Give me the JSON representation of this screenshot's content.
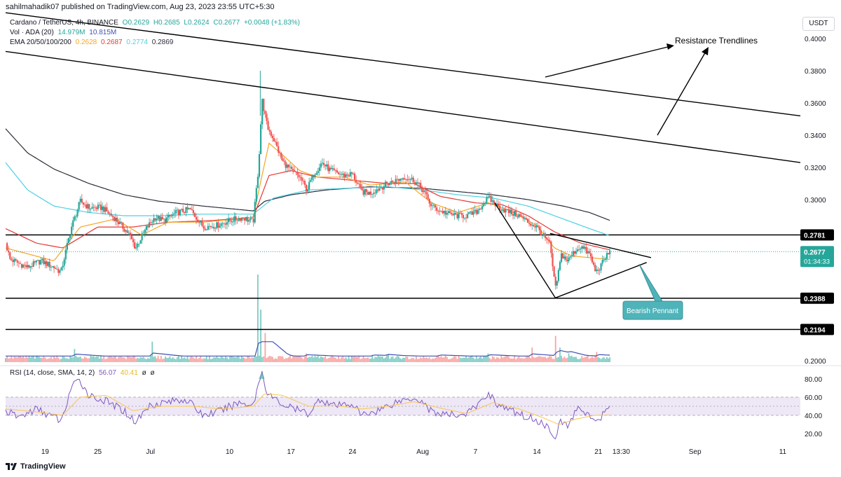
{
  "publisher_line": "sahilmahadik07 published on TradingView.com, Aug 23, 2023 23:55 UTC+5:30",
  "legend": {
    "symbol": "Cardano / TetherUS, 4h, BINANCE",
    "ohlc": {
      "o": "O0.2629",
      "h": "H0.2685",
      "l": "L0.2624",
      "c": "C0.2677",
      "chg": "+0.0048 (+1.83%)"
    },
    "volume": {
      "label": "Vol · ADA (20)",
      "v1": "14.979M",
      "v2": "10.815M"
    },
    "ema": {
      "label": "EMA 20/50/100/200",
      "v20": "0.2628",
      "v50": "0.2687",
      "v100": "0.2774",
      "v200": "0.2869"
    },
    "rsi": {
      "label": "RSI (14, close, SMA, 14, 2)",
      "v1": "56.07",
      "v2": "40.41",
      "v3": "ø",
      "v4": "ø"
    }
  },
  "currency": "USDT",
  "footer_brand": "TradingView",
  "colors": {
    "up": "#26a69a",
    "down": "#ef5350",
    "ema20": "#f5a623",
    "ema50": "#e53935",
    "ema100": "#4dd0e1",
    "ema200": "#2a2e39",
    "volume_ma": "#3f51b5",
    "rsi": "#7e57c2",
    "rsi_ma": "#f9c74f",
    "rsi_band": "#ede7f6",
    "price_badge": "#26a69a"
  },
  "chart_data": {
    "type": "candlestick",
    "symbol": "Cardano / TetherUS",
    "interval": "4h",
    "exchange": "BINANCE",
    "price_axis": {
      "min": 0.195,
      "max": 0.405,
      "ticks": [
        "0.4000",
        "0.3800",
        "0.3600",
        "0.3400",
        "0.3200",
        "0.3000",
        "0.2800",
        "0.2600",
        "0.2400",
        "0.2200",
        "0.2000"
      ]
    },
    "time_axis": {
      "ticks": [
        {
          "label": "19",
          "day": 19
        },
        {
          "label": "25",
          "day": 25
        },
        {
          "label": "Jul",
          "day": 31
        },
        {
          "label": "10",
          "day": 40
        },
        {
          "label": "17",
          "day": 47
        },
        {
          "label": "24",
          "day": 54
        },
        {
          "label": "Aug",
          "day": 62
        },
        {
          "label": "7",
          "day": 68
        },
        {
          "label": "14",
          "day": 75
        },
        {
          "label": "21",
          "day": 82
        },
        {
          "label": "13:30",
          "day": 84.6
        },
        {
          "label": "Sep",
          "day": 93
        },
        {
          "label": "11",
          "day": 103
        }
      ]
    },
    "price_keypoints": [
      [
        14.5,
        0.273
      ],
      [
        15,
        0.263
      ],
      [
        17,
        0.258
      ],
      [
        18.5,
        0.262
      ],
      [
        20,
        0.258
      ],
      [
        20.8,
        0.255
      ],
      [
        22,
        0.283
      ],
      [
        23,
        0.299
      ],
      [
        24,
        0.295
      ],
      [
        25.5,
        0.295
      ],
      [
        27,
        0.288
      ],
      [
        28.5,
        0.279
      ],
      [
        29.3,
        0.27
      ],
      [
        30.5,
        0.282
      ],
      [
        31.5,
        0.289
      ],
      [
        32.5,
        0.287
      ],
      [
        34,
        0.292
      ],
      [
        35.5,
        0.294
      ],
      [
        37,
        0.283
      ],
      [
        38.5,
        0.284
      ],
      [
        40,
        0.287
      ],
      [
        41.5,
        0.289
      ],
      [
        42.7,
        0.286
      ],
      [
        43.3,
        0.32
      ],
      [
        43.7,
        0.362
      ],
      [
        44.3,
        0.345
      ],
      [
        45,
        0.338
      ],
      [
        46,
        0.324
      ],
      [
        47,
        0.318
      ],
      [
        48,
        0.314
      ],
      [
        48.8,
        0.306
      ],
      [
        49.5,
        0.315
      ],
      [
        50.5,
        0.323
      ],
      [
        51.5,
        0.318
      ],
      [
        53,
        0.315
      ],
      [
        54,
        0.316
      ],
      [
        55,
        0.305
      ],
      [
        56,
        0.304
      ],
      [
        57,
        0.307
      ],
      [
        58,
        0.31
      ],
      [
        59,
        0.312
      ],
      [
        60,
        0.314
      ],
      [
        61,
        0.312
      ],
      [
        62,
        0.306
      ],
      [
        63,
        0.296
      ],
      [
        64,
        0.293
      ],
      [
        65,
        0.291
      ],
      [
        66,
        0.29
      ],
      [
        67,
        0.29
      ],
      [
        68,
        0.292
      ],
      [
        69.5,
        0.301
      ],
      [
        70.5,
        0.296
      ],
      [
        71.5,
        0.293
      ],
      [
        73,
        0.29
      ],
      [
        74,
        0.286
      ],
      [
        75,
        0.283
      ],
      [
        75.8,
        0.277
      ],
      [
        76.5,
        0.272
      ],
      [
        77.1,
        0.244
      ],
      [
        77.8,
        0.266
      ],
      [
        78.5,
        0.262
      ],
      [
        79.3,
        0.268
      ],
      [
        80,
        0.271
      ],
      [
        81,
        0.266
      ],
      [
        81.7,
        0.255
      ],
      [
        82.3,
        0.259
      ],
      [
        83,
        0.266
      ],
      [
        83.4,
        0.2677
      ]
    ],
    "ema_keypoints": {
      "ema20": [
        [
          14.5,
          0.27
        ],
        [
          20,
          0.262
        ],
        [
          23,
          0.283
        ],
        [
          27,
          0.288
        ],
        [
          30,
          0.278
        ],
        [
          33,
          0.286
        ],
        [
          37,
          0.286
        ],
        [
          42.7,
          0.289
        ],
        [
          43.5,
          0.31
        ],
        [
          44.5,
          0.335
        ],
        [
          46,
          0.328
        ],
        [
          48,
          0.318
        ],
        [
          50,
          0.314
        ],
        [
          53,
          0.314
        ],
        [
          56,
          0.309
        ],
        [
          60,
          0.311
        ],
        [
          63,
          0.298
        ],
        [
          66,
          0.292
        ],
        [
          69.5,
          0.298
        ],
        [
          72,
          0.293
        ],
        [
          75,
          0.284
        ],
        [
          77,
          0.27
        ],
        [
          79,
          0.265
        ],
        [
          81,
          0.264
        ],
        [
          83.4,
          0.2628
        ]
      ],
      "ema50": [
        [
          14.5,
          0.282
        ],
        [
          18,
          0.273
        ],
        [
          21,
          0.27
        ],
        [
          25,
          0.283
        ],
        [
          29,
          0.283
        ],
        [
          33,
          0.286
        ],
        [
          38,
          0.287
        ],
        [
          42.7,
          0.289
        ],
        [
          44.5,
          0.315
        ],
        [
          47,
          0.318
        ],
        [
          50,
          0.314
        ],
        [
          54,
          0.312
        ],
        [
          58,
          0.31
        ],
        [
          61,
          0.31
        ],
        [
          64,
          0.302
        ],
        [
          68,
          0.298
        ],
        [
          71,
          0.297
        ],
        [
          74,
          0.29
        ],
        [
          77,
          0.28
        ],
        [
          80,
          0.273
        ],
        [
          83.4,
          0.2687
        ]
      ],
      "ema100": [
        [
          14.5,
          0.323
        ],
        [
          17,
          0.306
        ],
        [
          20,
          0.296
        ],
        [
          24,
          0.292
        ],
        [
          28,
          0.29
        ],
        [
          32,
          0.29
        ],
        [
          37,
          0.291
        ],
        [
          42.7,
          0.291
        ],
        [
          45,
          0.301
        ],
        [
          49,
          0.306
        ],
        [
          53,
          0.307
        ],
        [
          58,
          0.308
        ],
        [
          62,
          0.306
        ],
        [
          66,
          0.303
        ],
        [
          70,
          0.301
        ],
        [
          74,
          0.296
        ],
        [
          78,
          0.288
        ],
        [
          81,
          0.282
        ],
        [
          83.4,
          0.2774
        ]
      ],
      "ema200": [
        [
          14.5,
          0.344
        ],
        [
          17,
          0.329
        ],
        [
          20,
          0.319
        ],
        [
          24,
          0.31
        ],
        [
          28,
          0.303
        ],
        [
          32,
          0.299
        ],
        [
          37,
          0.296
        ],
        [
          42.7,
          0.293
        ],
        [
          44,
          0.299
        ],
        [
          47,
          0.303
        ],
        [
          51,
          0.306
        ],
        [
          56,
          0.308
        ],
        [
          62,
          0.307
        ],
        [
          66,
          0.305
        ],
        [
          70,
          0.303
        ],
        [
          74,
          0.3
        ],
        [
          78,
          0.296
        ],
        [
          81,
          0.292
        ],
        [
          83.4,
          0.2869
        ]
      ]
    },
    "volume": {
      "max_million": 60.0,
      "spikes": [
        [
          22.3,
          9
        ],
        [
          31.2,
          14
        ],
        [
          43.2,
          60
        ],
        [
          43.6,
          36
        ],
        [
          44.0,
          20
        ],
        [
          48.8,
          6
        ],
        [
          56.3,
          5
        ],
        [
          58.0,
          5
        ],
        [
          63.8,
          5
        ],
        [
          69.5,
          6
        ],
        [
          74.4,
          10
        ],
        [
          77.1,
          18
        ],
        [
          77.6,
          10
        ],
        [
          78.6,
          6
        ],
        [
          81.8,
          7
        ]
      ]
    },
    "rsi": {
      "axis": {
        "min": 10,
        "max": 90,
        "ticks": [
          "80.00",
          "60.00",
          "40.00",
          "20.00"
        ],
        "band": [
          40,
          60
        ]
      },
      "keypoints": [
        [
          14.5,
          45
        ],
        [
          16,
          38
        ],
        [
          18,
          47
        ],
        [
          20,
          38
        ],
        [
          20.9,
          34
        ],
        [
          22,
          72
        ],
        [
          23,
          78
        ],
        [
          24,
          62
        ],
        [
          26,
          55
        ],
        [
          28,
          45
        ],
        [
          29.3,
          33
        ],
        [
          31,
          52
        ],
        [
          33,
          55
        ],
        [
          35,
          58
        ],
        [
          37,
          40
        ],
        [
          39,
          45
        ],
        [
          41,
          54
        ],
        [
          42.7,
          52
        ],
        [
          43.3,
          75
        ],
        [
          43.7,
          88
        ],
        [
          44.3,
          64
        ],
        [
          46,
          52
        ],
        [
          48,
          45
        ],
        [
          49,
          42
        ],
        [
          50.3,
          58
        ],
        [
          52,
          50
        ],
        [
          54,
          53
        ],
        [
          55,
          40
        ],
        [
          57,
          46
        ],
        [
          59,
          55
        ],
        [
          61,
          60
        ],
        [
          62,
          55
        ],
        [
          63,
          44
        ],
        [
          65,
          40
        ],
        [
          67,
          42
        ],
        [
          68.5,
          53
        ],
        [
          69.5,
          65
        ],
        [
          70.5,
          52
        ],
        [
          72,
          45
        ],
        [
          74,
          38
        ],
        [
          75,
          35
        ],
        [
          75.8,
          30
        ],
        [
          76.5,
          24
        ],
        [
          77.1,
          18
        ],
        [
          77.8,
          34
        ],
        [
          78.5,
          28
        ],
        [
          79.3,
          43
        ],
        [
          80,
          48
        ],
        [
          81,
          40
        ],
        [
          81.7,
          30
        ],
        [
          82.3,
          38
        ],
        [
          83,
          48
        ],
        [
          83.4,
          56.07
        ]
      ],
      "ma_keypoints": [
        [
          14.5,
          47
        ],
        [
          18,
          44
        ],
        [
          21,
          40
        ],
        [
          23,
          60
        ],
        [
          26,
          62
        ],
        [
          29,
          45
        ],
        [
          32,
          50
        ],
        [
          36,
          50
        ],
        [
          39,
          47
        ],
        [
          42.7,
          50
        ],
        [
          44,
          64
        ],
        [
          46,
          62
        ],
        [
          49,
          50
        ],
        [
          52,
          51
        ],
        [
          55,
          47
        ],
        [
          58,
          50
        ],
        [
          61,
          55
        ],
        [
          64,
          48
        ],
        [
          67,
          42
        ],
        [
          70,
          54
        ],
        [
          73,
          47
        ],
        [
          75.8,
          37
        ],
        [
          77.5,
          30
        ],
        [
          79.5,
          36
        ],
        [
          81.5,
          40
        ],
        [
          83.4,
          40.41
        ]
      ]
    },
    "horizontal_levels": [
      {
        "price": 0.2781,
        "label": "0.2781"
      },
      {
        "price": 0.2388,
        "label": "0.2388"
      },
      {
        "price": 0.2194,
        "label": "0.2194"
      }
    ],
    "current_price": {
      "value": "0.2677",
      "countdown": "01:34:33"
    },
    "last_volume_ema_label": "0.2600",
    "trendlines": [
      {
        "name": "resistance-1",
        "from": [
          14.5,
          0.416
        ],
        "to": [
          105,
          0.352
        ]
      },
      {
        "name": "resistance-2",
        "from": [
          14.5,
          0.392
        ],
        "to": [
          105,
          0.323
        ]
      },
      {
        "name": "pennant-upper",
        "from": [
          76.5,
          0.279
        ],
        "to": [
          88,
          0.264
        ]
      },
      {
        "name": "pennant-lower",
        "from": [
          77.1,
          0.239
        ],
        "to": [
          87.5,
          0.261
        ]
      },
      {
        "name": "pennant-pole",
        "from": [
          70.2,
          0.298
        ],
        "to": [
          77.1,
          0.239
        ]
      }
    ],
    "annotations": [
      {
        "text": "Resistance Trendlines",
        "style": "plain"
      },
      {
        "text": "Bearish Pennant",
        "style": "callout"
      }
    ]
  }
}
